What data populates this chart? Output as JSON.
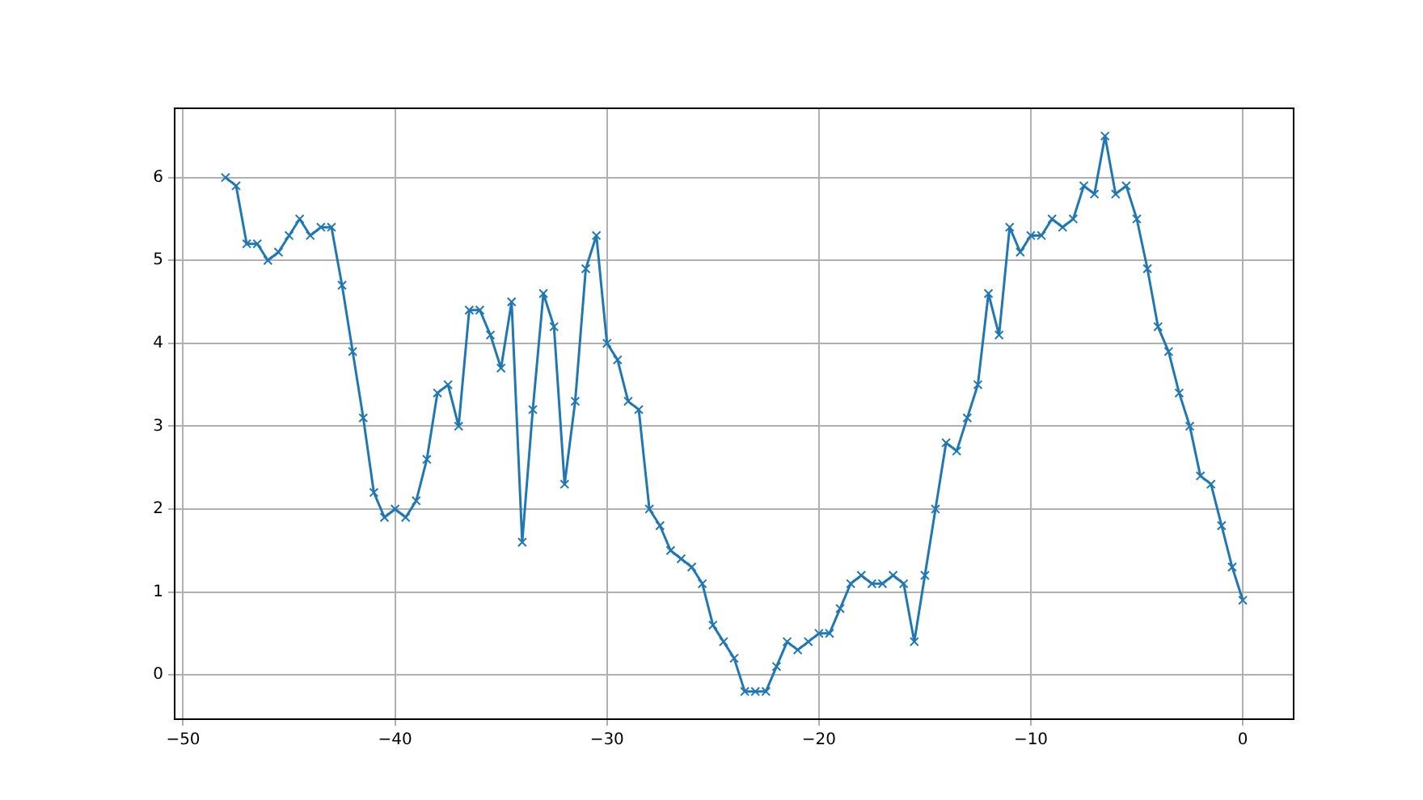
{
  "chart_data": {
    "type": "line",
    "color": "#1f77b4",
    "marker": "cross",
    "line_style": "solid",
    "grid": true,
    "legend": false,
    "x": [
      -48,
      -47.5,
      -47,
      -46.5,
      -46,
      -45.5,
      -45,
      -44.5,
      -44,
      -43.5,
      -43,
      -42.5,
      -42,
      -41.5,
      -41,
      -40.5,
      -40,
      -39.5,
      -39,
      -38.5,
      -38,
      -37.5,
      -37,
      -36.5,
      -36,
      -35.5,
      -35,
      -34.5,
      -34,
      -33.5,
      -33,
      -32.5,
      -32,
      -31.5,
      -31,
      -30.5,
      -30,
      -29.5,
      -29,
      -28.5,
      -28,
      -27.5,
      -27,
      -26.5,
      -26,
      -25.5,
      -25,
      -24.5,
      -24,
      -23.5,
      -23,
      -22.5,
      -22,
      -21.5,
      -21,
      -20.5,
      -20,
      -19.5,
      -19,
      -18.5,
      -18,
      -17.5,
      -17,
      -16.5,
      -16,
      -15.5,
      -15,
      -14.5,
      -14,
      -13.5,
      -13,
      -12.5,
      -12,
      -11.5,
      -11,
      -10.5,
      -10,
      -9.5,
      -9,
      -8.5,
      -8,
      -7.5,
      -7,
      -6.5,
      -6,
      -5.5,
      -5,
      -4.5,
      -4,
      -3.5,
      -3,
      -2.5,
      -2,
      -1.5,
      -1,
      -0.5,
      0
    ],
    "values": [
      6.0,
      5.9,
      5.2,
      5.2,
      5.0,
      5.1,
      5.3,
      5.5,
      5.3,
      5.4,
      5.4,
      4.7,
      3.9,
      3.1,
      2.2,
      1.9,
      2.0,
      1.9,
      2.1,
      2.6,
      3.4,
      3.5,
      3.0,
      4.4,
      4.4,
      4.1,
      3.7,
      4.5,
      1.6,
      3.2,
      4.6,
      4.2,
      2.3,
      3.3,
      4.9,
      5.3,
      4.0,
      3.8,
      3.3,
      3.2,
      2.0,
      1.8,
      1.5,
      1.4,
      1.3,
      1.1,
      0.6,
      0.4,
      0.2,
      -0.2,
      -0.2,
      -0.2,
      0.1,
      0.4,
      0.3,
      0.4,
      0.5,
      0.5,
      0.8,
      1.1,
      1.2,
      1.1,
      1.1,
      1.2,
      1.1,
      0.4,
      1.2,
      2.0,
      2.8,
      2.7,
      3.1,
      3.5,
      4.6,
      4.1,
      5.4,
      5.1,
      5.3,
      5.3,
      5.5,
      5.4,
      5.5,
      5.9,
      5.8,
      6.5,
      5.8,
      5.9,
      5.5,
      4.9,
      4.2,
      3.9,
      3.4,
      3.0,
      2.4,
      2.3,
      1.8,
      1.3,
      0.9
    ],
    "xlim": [
      -50.4,
      2.4
    ],
    "ylim": [
      -0.535,
      6.835
    ],
    "xticks": [
      -50,
      -40,
      -30,
      -20,
      -10,
      0
    ],
    "yticks": [
      0,
      1,
      2,
      3,
      4,
      5,
      6
    ]
  }
}
